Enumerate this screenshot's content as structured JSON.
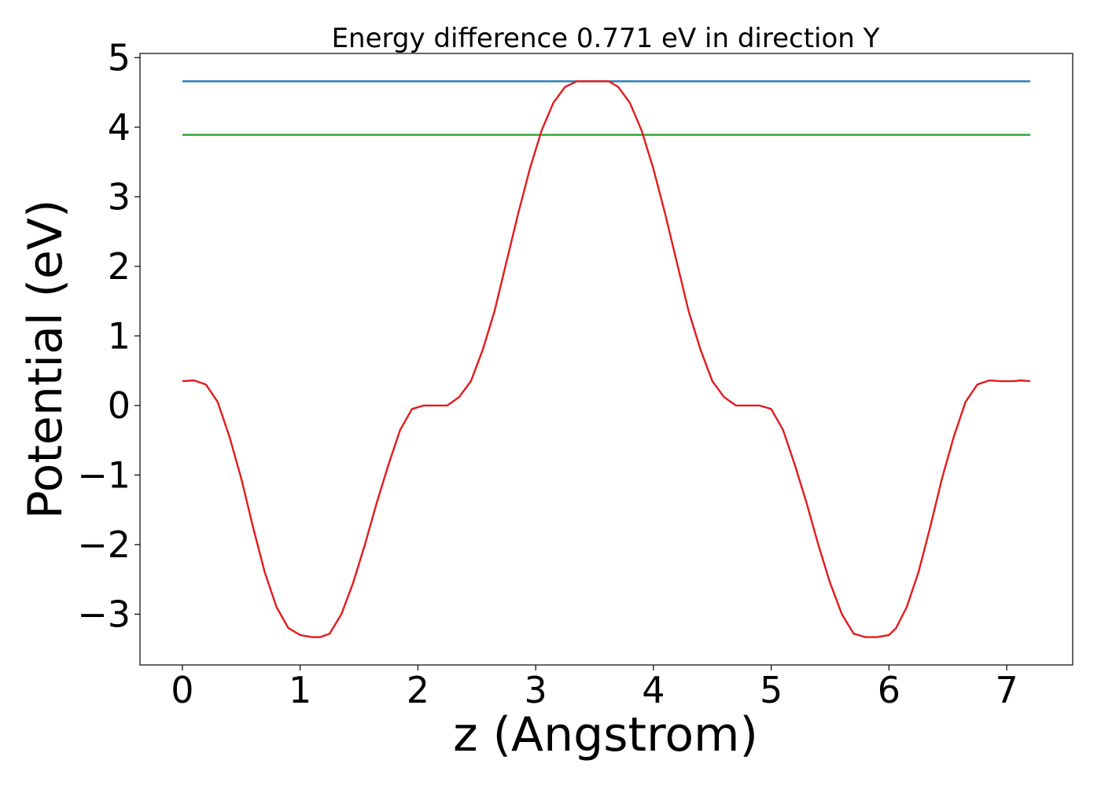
{
  "chart_data": {
    "type": "line",
    "title": "Energy difference 0.771 eV in direction Y",
    "xlabel": "z (Angstrom)",
    "ylabel": "Potential (eV)",
    "xlim": [
      -0.36,
      7.56
    ],
    "ylim": [
      -3.73,
      5.06
    ],
    "xticks": [
      0,
      1,
      2,
      3,
      4,
      5,
      6,
      7
    ],
    "xtick_labels": [
      "0",
      "1",
      "2",
      "3",
      "4",
      "5",
      "6",
      "7"
    ],
    "yticks": [
      -3,
      -2,
      -1,
      0,
      1,
      2,
      3,
      4,
      5
    ],
    "ytick_labels": [
      "−3",
      "−2",
      "−1",
      "0",
      "1",
      "2",
      "3",
      "4",
      "5"
    ],
    "grid": false,
    "series": [
      {
        "color": "#1f77b4",
        "x": [
          0,
          7.2
        ],
        "y": [
          4.66,
          4.66
        ]
      },
      {
        "color": "#2ca02c",
        "x": [
          0,
          7.2
        ],
        "y": [
          3.89,
          3.89
        ]
      },
      {
        "color": "#e41a1c",
        "x": [
          0,
          0.1,
          0.2,
          0.3,
          0.4,
          0.5,
          0.6,
          0.7,
          0.8,
          0.9,
          1.0,
          1.1,
          1.17,
          1.25,
          1.35,
          1.45,
          1.55,
          1.65,
          1.75,
          1.85,
          1.95,
          2.05,
          2.15,
          2.25,
          2.35,
          2.45,
          2.55,
          2.65,
          2.75,
          2.85,
          2.95,
          3.05,
          3.15,
          3.25,
          3.35,
          3.45,
          3.55,
          3.62,
          3.7,
          3.8,
          3.9,
          4.0,
          4.1,
          4.2,
          4.3,
          4.4,
          4.5,
          4.6,
          4.7,
          4.8,
          4.9,
          5.0,
          5.1,
          5.2,
          5.3,
          5.4,
          5.5,
          5.6,
          5.7,
          5.8,
          5.9,
          6.0,
          6.06,
          6.15,
          6.25,
          6.35,
          6.45,
          6.55,
          6.65,
          6.75,
          6.85,
          6.95,
          7.05,
          7.12,
          7.2
        ],
        "y": [
          0.35,
          0.36,
          0.3,
          0.05,
          -0.45,
          -1.05,
          -1.75,
          -2.4,
          -2.9,
          -3.2,
          -3.3,
          -3.33,
          -3.33,
          -3.28,
          -3.0,
          -2.55,
          -2.0,
          -1.4,
          -0.85,
          -0.35,
          -0.05,
          0.0,
          0.0,
          0.0,
          0.12,
          0.35,
          0.8,
          1.35,
          2.05,
          2.75,
          3.4,
          3.95,
          4.35,
          4.58,
          4.66,
          4.66,
          4.66,
          4.66,
          4.58,
          4.35,
          3.95,
          3.4,
          2.75,
          2.05,
          1.35,
          0.8,
          0.35,
          0.12,
          0.0,
          0.0,
          0.0,
          -0.05,
          -0.35,
          -0.85,
          -1.4,
          -2.0,
          -2.55,
          -3.0,
          -3.28,
          -3.33,
          -3.33,
          -3.3,
          -3.2,
          -2.9,
          -2.4,
          -1.75,
          -1.05,
          -0.45,
          0.05,
          0.3,
          0.36,
          0.35,
          0.35,
          0.36,
          0.35
        ]
      }
    ]
  }
}
